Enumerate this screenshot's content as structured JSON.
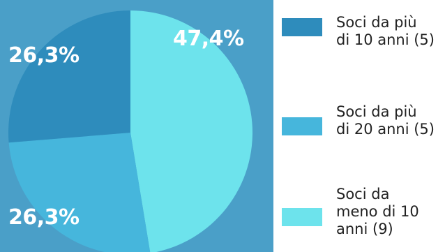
{
  "chart_data": {
    "type": "pie",
    "slices": [
      {
        "label": "Soci da più di 10 anni (5)",
        "value": 26.3,
        "value_label": "26,3%",
        "color": "#2e8cbc"
      },
      {
        "label": "Soci da più di 20 anni (5)",
        "value": 26.3,
        "value_label": "26,3%",
        "color": "#46b6dc"
      },
      {
        "label": "Soci da meno di 10 anni (9)",
        "value": 47.4,
        "value_label": "47,4%",
        "color": "#6de3ec"
      }
    ],
    "legend_placement": "right"
  },
  "colors": {
    "panel_background": "#4a9fc8",
    "legend_background": "#ffffff",
    "label_text": "#ffffff",
    "legend_text": "#222222"
  },
  "legend": {
    "items": [
      {
        "lines": [
          "Soci da più",
          "di 10 anni (5)"
        ]
      },
      {
        "lines": [
          "Soci da più",
          "di 20 anni (5)"
        ]
      },
      {
        "lines": [
          "Soci da",
          "meno di 10",
          "anni (9)"
        ]
      }
    ]
  }
}
